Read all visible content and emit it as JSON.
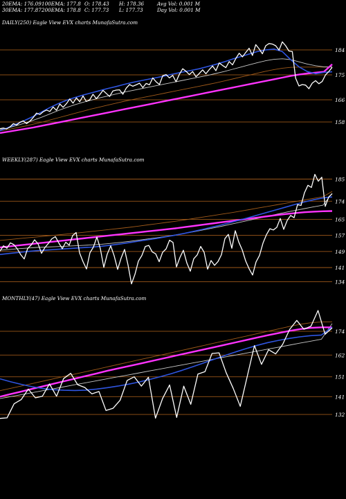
{
  "stats": {
    "row1": [
      {
        "text": "20EMA: 176.09"
      },
      {
        "text": "100EMA: 177.8"
      },
      {
        "text": "O: 178.43"
      },
      {
        "text": "H: 178.36"
      },
      {
        "text": "Avg Vol: 0.001 M"
      }
    ],
    "row2": [
      {
        "text": "30EMA: 177.87"
      },
      {
        "text": "200EMA: 178.8"
      },
      {
        "text": "C: 177.73"
      },
      {
        "text": "L: 177.73"
      },
      {
        "text": "Day Vol: 0.001 M"
      }
    ]
  },
  "colors": {
    "background": "#000000",
    "price": "#ffffff",
    "ema_fast": "#2f55e0",
    "ema_slow": "#ff33ff",
    "ema_brown": "#a05a1a",
    "ema_grey": "#c8c8c8",
    "grid": "#b5651d"
  },
  "chart_data": [
    {
      "type": "line",
      "label": "DAILY(250) Eagle View EVX charts MunafaSutra.com",
      "ticks": [
        "184",
        "175",
        "166",
        "158"
      ],
      "ylim": [
        152,
        192
      ],
      "series": [
        {
          "role": "price",
          "values": [
            155.6,
            155.8,
            155.5,
            156.2,
            157.4,
            156.9,
            157.9,
            158.4,
            157.4,
            158.3,
            159.6,
            161.2,
            160.7,
            161.7,
            162.3,
            161.8,
            163.4,
            162.2,
            164.5,
            163.3,
            164.6,
            166.3,
            164.8,
            166.7,
            165.3,
            167.4,
            165.4,
            166.0,
            168.0,
            166.4,
            167.8,
            169.4,
            168.3,
            167.2,
            169.2,
            169.5,
            169.6,
            168.0,
            170.2,
            171.5,
            170.9,
            171.4,
            172.0,
            170.4,
            171.9,
            171.4,
            173.9,
            172.5,
            171.5,
            174.7,
            175.1,
            173.9,
            174.8,
            172.5,
            175.2,
            177.2,
            176.3,
            175.1,
            176.2,
            174.3,
            175.5,
            176.8,
            175.4,
            176.9,
            178.2,
            176.5,
            179.3,
            178.4,
            177.6,
            179.8,
            178.6,
            180.9,
            182.8,
            181.5,
            183.1,
            184.6,
            182.0,
            185.9,
            184.4,
            182.6,
            185.5,
            186.3,
            186.1,
            185.5,
            183.9,
            186.9,
            185.5,
            183.6,
            183.4,
            173.8,
            171.0,
            171.5,
            171.3,
            170.0,
            172.0,
            172.9,
            171.8,
            172.6,
            175.0,
            176.2,
            177.7
          ]
        },
        {
          "role": "ema_fast",
          "values": [
            154.8,
            156.0,
            157.3,
            158.6,
            160.0,
            161.6,
            163.2,
            164.6,
            165.8,
            166.8,
            167.7,
            168.5,
            169.3,
            170.1,
            170.8,
            171.6,
            172.3,
            172.9,
            173.5,
            174.1,
            174.7,
            175.4,
            176.0,
            176.6,
            177.2,
            178.0,
            178.8,
            179.7,
            180.7,
            181.6,
            182.5,
            183.4,
            184.0,
            184.3,
            183.4,
            180.5,
            177.9,
            176.2,
            175.4,
            175.9,
            176.09
          ]
        },
        {
          "role": "ema_grey",
          "values": [
            155.2,
            155.9,
            156.7,
            157.6,
            158.6,
            159.7,
            160.9,
            162.1,
            163.2,
            164.2,
            165.1,
            165.9,
            166.7,
            167.4,
            168.1,
            168.8,
            169.4,
            170.0,
            170.6,
            171.2,
            171.8,
            172.4,
            173.0,
            173.6,
            174.2,
            174.8,
            175.5,
            176.2,
            177.0,
            177.8,
            178.6,
            179.4,
            180.1,
            180.6,
            180.8,
            180.5,
            179.7,
            178.9,
            178.3,
            177.9,
            177.87
          ]
        },
        {
          "role": "ema_brown",
          "values": [
            154.8,
            155.3,
            155.9,
            156.5,
            157.2,
            157.9,
            158.7,
            159.5,
            160.3,
            161.1,
            161.9,
            162.7,
            163.4,
            164.1,
            164.8,
            165.5,
            166.1,
            166.7,
            167.3,
            167.9,
            168.5,
            169.1,
            169.7,
            170.3,
            170.9,
            171.5,
            172.1,
            172.8,
            173.5,
            174.2,
            174.9,
            175.6,
            176.3,
            176.9,
            177.4,
            177.7,
            177.8,
            177.8,
            177.8,
            177.8,
            177.8
          ]
        },
        {
          "role": "ema_slow",
          "values": [
            154.0,
            154.5,
            155.0,
            155.5,
            156.0,
            156.6,
            157.2,
            157.8,
            158.4,
            159.0,
            159.6,
            160.2,
            160.8,
            161.4,
            162.0,
            162.6,
            163.2,
            163.8,
            164.4,
            165.0,
            165.6,
            166.2,
            166.8,
            167.4,
            168.0,
            168.6,
            169.2,
            169.8,
            170.4,
            171.0,
            171.6,
            172.2,
            172.8,
            173.4,
            174.0,
            174.6,
            175.1,
            175.5,
            175.8,
            176.1,
            178.8
          ]
        }
      ]
    },
    {
      "type": "line",
      "label": "WEEKLY(287) Eagle View EVX charts MunafaSutra.com",
      "ticks": [
        "185",
        "174",
        "165",
        "157",
        "149",
        "141",
        "134"
      ],
      "ylim": [
        130,
        192
      ],
      "series": [
        {
          "role": "price",
          "values": [
            149.2,
            151.8,
            150.6,
            153.3,
            152.4,
            150.3,
            147.4,
            145.3,
            150.5,
            152.2,
            154.8,
            152.8,
            148.1,
            151.0,
            153.0,
            155.3,
            156.4,
            153.2,
            150.4,
            153.6,
            152.1,
            156.9,
            158.4,
            148.3,
            143.9,
            140.3,
            148.4,
            151.2,
            156.2,
            150.4,
            141.1,
            147.7,
            151.8,
            146.8,
            140.1,
            145.7,
            150.0,
            142.3,
            132.9,
            137.6,
            144.2,
            147.0,
            151.5,
            152.0,
            148.8,
            147.8,
            143.9,
            148.6,
            150.3,
            154.6,
            153.5,
            141.3,
            146.0,
            149.6,
            143.3,
            139.2,
            145.4,
            147.3,
            151.5,
            148.6,
            140.2,
            144.5,
            142.1,
            144.0,
            147.4,
            155.4,
            157.5,
            150.6,
            159.3,
            153.7,
            149.8,
            144.3,
            140.4,
            137.3,
            143.8,
            147.0,
            153.1,
            157.3,
            160.3,
            159.7,
            161.0,
            165.4,
            160.0,
            164.4,
            166.9,
            165.8,
            172.3,
            171.9,
            178.2,
            181.9,
            180.8,
            187.3,
            183.9,
            185.9,
            171.4,
            176.1,
            177.7
          ]
        },
        {
          "role": "ema_fast",
          "values": [
            147.5,
            148.0,
            148.5,
            149.0,
            149.4,
            149.7,
            150.0,
            150.3,
            150.6,
            150.9,
            151.2,
            151.6,
            152.1,
            152.7,
            153.4,
            154.1,
            154.8,
            155.5,
            156.3,
            157.1,
            158.0,
            159.0,
            160.0,
            161.1,
            162.2,
            163.4,
            164.6,
            165.9,
            167.2,
            168.5,
            169.8,
            171.1,
            172.4,
            173.6,
            174.7,
            175.6,
            176.09
          ]
        },
        {
          "role": "ema_grey",
          "values": [
            149.6,
            150.0,
            150.4,
            150.7,
            151.0,
            151.2,
            151.4,
            151.6,
            151.8,
            152.0,
            152.3,
            152.6,
            153.0,
            153.5,
            154.0,
            154.6,
            155.2,
            155.8,
            156.5,
            157.2,
            158.0,
            158.8,
            159.7,
            160.6,
            161.5,
            162.5,
            163.5,
            164.5,
            165.5,
            166.5,
            167.5,
            168.5,
            169.4,
            170.3,
            171.2,
            172.0,
            177.87
          ]
        },
        {
          "role": "ema_brown",
          "values": [
            154.5,
            154.9,
            155.4,
            155.8,
            156.2,
            156.7,
            157.1,
            157.6,
            158.0,
            158.5,
            159.0,
            159.5,
            160.0,
            160.5,
            161.0,
            161.6,
            162.2,
            162.8,
            163.4,
            164.0,
            164.7,
            165.4,
            166.1,
            166.8,
            167.5,
            168.2,
            169.0,
            169.8,
            170.6,
            171.4,
            172.2,
            173.0,
            173.8,
            174.6,
            175.4,
            176.2,
            178.8
          ]
        },
        {
          "role": "ema_slow",
          "values": [
            151.0,
            151.5,
            152.0,
            152.5,
            153.0,
            153.5,
            154.0,
            154.5,
            155.0,
            155.5,
            156.0,
            156.5,
            157.0,
            157.5,
            158.0,
            158.5,
            159.0,
            159.5,
            160.0,
            160.5,
            161.1,
            161.7,
            162.3,
            162.9,
            163.5,
            164.1,
            164.7,
            165.3,
            165.9,
            166.5,
            167.1,
            167.6,
            168.1,
            168.5,
            168.8,
            169.0,
            169.1
          ]
        }
      ]
    },
    {
      "type": "line",
      "label": "MONTHLY(47) Eagle View EVX charts MunafaSutra.com",
      "ticks": [
        "174",
        "162",
        "151",
        "141",
        "132"
      ],
      "ylim": [
        125,
        188
      ],
      "series": [
        {
          "role": "price",
          "values": [
            130.0,
            130.3,
            137.4,
            139.5,
            144.8,
            140.4,
            141.2,
            147.4,
            141.2,
            150.1,
            152.8,
            147.0,
            145.6,
            142.4,
            143.6,
            134.0,
            135.1,
            139.2,
            149.2,
            151.0,
            146.3,
            150.8,
            130.1,
            140.0,
            146.9,
            130.5,
            146.3,
            137.1,
            152.4,
            153.6,
            162.8,
            163.1,
            153.1,
            145.2,
            136.1,
            151.4,
            166.8,
            157.3,
            164.7,
            162.6,
            167.4,
            175.0,
            179.5,
            175.0,
            176.6,
            184.5,
            172.5,
            175.7
          ]
        },
        {
          "role": "ema_fast",
          "values": [
            150.0,
            148.5,
            147.2,
            146.0,
            145.1,
            144.5,
            144.2,
            144.1,
            144.3,
            144.8,
            145.5,
            146.3,
            147.3,
            148.4,
            149.7,
            151.1,
            152.6,
            154.3,
            156.1,
            158.0,
            159.9,
            161.8,
            163.6,
            165.3,
            166.9,
            168.3,
            169.4,
            170.4,
            171.2,
            171.8,
            172.1,
            176.09
          ]
        },
        {
          "role": "ema_grey",
          "values": [
            140.0,
            141.0,
            142.0,
            143.0,
            144.0,
            145.0,
            146.0,
            147.0,
            148.0,
            149.0,
            150.0,
            151.0,
            152.0,
            153.0,
            154.0,
            155.0,
            156.0,
            157.0,
            158.0,
            159.0,
            160.0,
            161.0,
            162.0,
            163.0,
            164.0,
            165.0,
            166.0,
            167.0,
            168.0,
            169.0,
            170.0,
            177.87
          ]
        },
        {
          "role": "ema_brown",
          "values": [
            144.0,
            145.2,
            146.4,
            147.6,
            148.8,
            150.0,
            151.2,
            152.4,
            153.6,
            154.8,
            156.0,
            157.2,
            158.4,
            159.6,
            160.8,
            162.0,
            163.2,
            164.4,
            165.6,
            166.8,
            168.0,
            169.2,
            170.4,
            171.6,
            172.8,
            174.0,
            175.2,
            176.4,
            177.5,
            178.3,
            178.7,
            178.8
          ]
        },
        {
          "role": "ema_slow",
          "values": [
            141.0,
            142.3,
            143.6,
            144.9,
            146.2,
            147.5,
            148.8,
            150.1,
            151.4,
            152.7,
            154.0,
            155.2,
            156.4,
            157.6,
            158.8,
            160.0,
            161.2,
            162.4,
            163.6,
            164.8,
            166.0,
            167.2,
            168.4,
            169.6,
            170.8,
            172.0,
            173.1,
            174.2,
            175.1,
            175.7,
            176.0,
            176.0
          ]
        }
      ]
    }
  ]
}
